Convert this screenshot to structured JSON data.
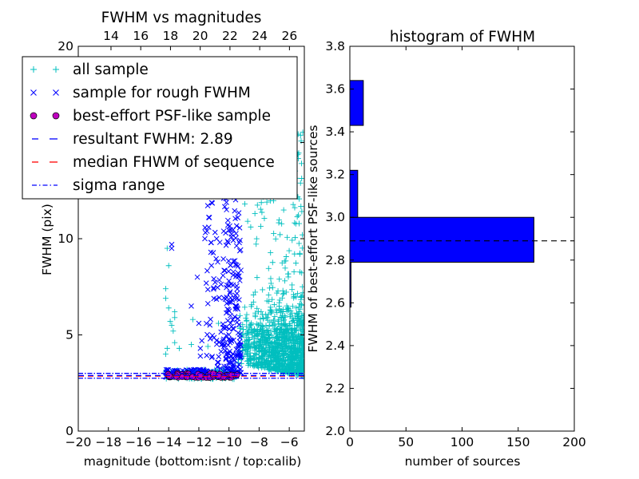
{
  "chart_data": [
    {
      "type": "scatter",
      "title": "FWHM vs magnitudes",
      "xlabel": "magnitude (bottom:isnt / top:calib)",
      "ylabel": "FWHM (pix)",
      "xlim": [
        -20,
        -5
      ],
      "ylim": [
        0,
        20
      ],
      "x_ticks": [
        "−20",
        "−18",
        "−16",
        "−14",
        "−12",
        "−10",
        "−8",
        "−6"
      ],
      "x_tick_values": [
        -20,
        -18,
        -16,
        -14,
        -12,
        -10,
        -8,
        -6
      ],
      "y_ticks": [
        "0",
        "5",
        "10",
        "15",
        "20"
      ],
      "y_tick_values": [
        0,
        5,
        10,
        15,
        20
      ],
      "top_x_ticks": [
        "14",
        "16",
        "18",
        "20",
        "22",
        "24",
        "26"
      ],
      "top_x_tick_values": [
        14,
        16,
        18,
        20,
        22,
        24,
        26
      ],
      "top_xlim": [
        11.8,
        27.0
      ],
      "legend_position": "top-left",
      "legend": [
        {
          "label": "all sample",
          "marker": "+",
          "color": "#00bfbf"
        },
        {
          "label": "sample for rough FWHM",
          "marker": "x",
          "color": "#0000ff"
        },
        {
          "label": "best-effort PSF-like sample",
          "marker": "o",
          "color": "#bf00bf"
        },
        {
          "label": "resultant FWHM: 2.89",
          "marker": "--",
          "color": "#0000ff"
        },
        {
          "label": "median FHWM of sequence",
          "marker": "--",
          "color": "#ff0000"
        },
        {
          "label": "sigma range",
          "marker": "-.",
          "color": "#0000ff"
        }
      ],
      "resultant_fwhm": 2.89,
      "median_fwhm": 2.86,
      "sigma_range": [
        2.75,
        3.0
      ],
      "series": [
        {
          "name": "all sample",
          "marker": "+",
          "color": "#00bfbf",
          "clusters": [
            {
              "x_range": [
                -9.5,
                -5.0
              ],
              "y_range": [
                2.0,
                19.5
              ],
              "count": 1200
            },
            {
              "x_range": [
                -14.3,
                -9.6
              ],
              "y_range": [
                2.7,
                3.2
              ],
              "count": 160
            }
          ],
          "points": [
            [
              -14.1,
              9.5
            ],
            [
              -14.0,
              8.6
            ],
            [
              -14.2,
              7.4
            ],
            [
              -14.2,
              6.9
            ],
            [
              -14.0,
              6.4
            ],
            [
              -13.9,
              5.7
            ],
            [
              -13.8,
              5.5
            ],
            [
              -13.6,
              5.9
            ],
            [
              -13.6,
              6.2
            ],
            [
              -13.7,
              5.2
            ],
            [
              -13.6,
              4.6
            ],
            [
              -14.1,
              4.3
            ],
            [
              -14.2,
              4.0
            ],
            [
              -13.3,
              4.3
            ],
            [
              -12.5,
              4.5
            ],
            [
              -12.4,
              5.8
            ],
            [
              -10.7,
              5.6
            ],
            [
              -11.4,
              4.4
            ]
          ]
        },
        {
          "name": "sample for rough FWHM",
          "marker": "x",
          "color": "#0000ff",
          "clusters": [
            {
              "x_range": [
                -10.4,
                -9.2
              ],
              "y_range": [
                3.0,
                14.5
              ],
              "count": 220
            },
            {
              "x_range": [
                -11.6,
                -10.5
              ],
              "y_range": [
                3.0,
                12.0
              ],
              "count": 60
            },
            {
              "x_range": [
                -14.2,
                -11.5
              ],
              "y_range": [
                2.8,
                3.2
              ],
              "count": 100
            }
          ],
          "points": [
            [
              -13.8,
              9.7
            ],
            [
              -13.8,
              9.5
            ],
            [
              -12.5,
              6.5
            ],
            [
              -12.1,
              8.0
            ],
            [
              -11.9,
              4.3
            ],
            [
              -11.9,
              3.9
            ],
            [
              -11.8,
              4.7
            ],
            [
              -12.0,
              5.6
            ],
            [
              -11.3,
              11.1
            ],
            [
              -11.6,
              10.0
            ],
            [
              -11.2,
              9.8
            ],
            [
              -11.0,
              12.3
            ],
            [
              -10.7,
              13.5
            ],
            [
              -9.8,
              13.2
            ]
          ]
        },
        {
          "name": "best-effort PSF-like sample",
          "marker": "o",
          "color": "#bf00bf",
          "clusters": [
            {
              "x_range": [
                -14.1,
                -9.4
              ],
              "y_range": [
                2.78,
                3.0
              ],
              "count": 70
            }
          ]
        }
      ]
    },
    {
      "type": "bar",
      "orientation": "horizontal",
      "title": "histogram of FWHM",
      "xlabel": "number of sources",
      "ylabel": "FWHM of best-effort PSF-like sources",
      "xlim": [
        0,
        200
      ],
      "ylim": [
        2.0,
        3.8
      ],
      "x_ticks": [
        "0",
        "50",
        "100",
        "150",
        "200"
      ],
      "x_tick_values": [
        0,
        50,
        100,
        150,
        200
      ],
      "y_ticks": [
        "2.0",
        "2.2",
        "2.4",
        "2.6",
        "2.8",
        "3.0",
        "3.2",
        "3.4",
        "3.6",
        "3.8"
      ],
      "y_tick_values": [
        2.0,
        2.2,
        2.4,
        2.6,
        2.8,
        3.0,
        3.2,
        3.4,
        3.6,
        3.8
      ],
      "color": "#0000ff",
      "bins": [
        {
          "range": [
            2.58,
            2.79
          ],
          "count": 1
        },
        {
          "range": [
            2.79,
            3.0
          ],
          "count": 164
        },
        {
          "range": [
            3.0,
            3.21
          ],
          "count": 0
        },
        {
          "range": [
            3.0,
            3.22
          ],
          "count": 7
        },
        {
          "range": [
            3.43,
            3.64
          ],
          "count": 12
        }
      ],
      "reference_line": {
        "value": 2.89,
        "style": "--",
        "color": "#000000"
      }
    }
  ]
}
